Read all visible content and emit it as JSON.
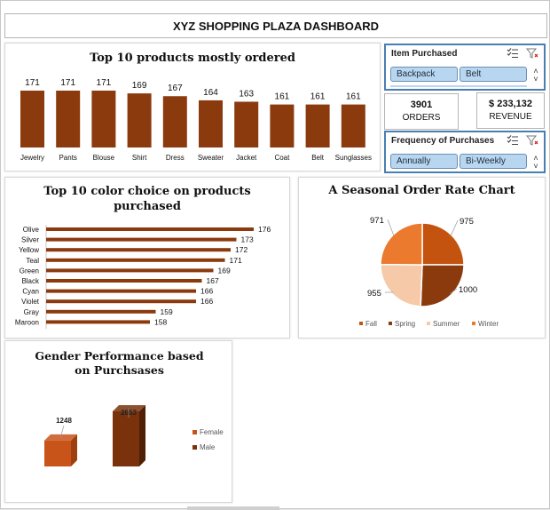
{
  "dashboard_title": "XYZ SHOPPING PLAZA DASHBOARD",
  "kpis": {
    "orders_value": "3901",
    "orders_label": "ORDERS",
    "revenue_value": "$ 233,132",
    "revenue_label": "REVENUE"
  },
  "slicers": {
    "item_purchased": {
      "title": "Item Purchased",
      "items": [
        "Backpack",
        "Belt"
      ]
    },
    "frequency": {
      "title": "Frequency of Purchases",
      "items": [
        "Annually",
        "Bi-Weekly"
      ]
    }
  },
  "colors": {
    "bar": "#8B3A0E",
    "male": "#7A320C",
    "female": "#C9541A",
    "fall": "#C4530F",
    "spring": "#8B3A0E",
    "summer": "#F6C9A8",
    "winter": "#EC7A2E",
    "slicer_button": "#B9D6F0",
    "slicer_border": "#4A7EB0"
  },
  "chart_data": [
    {
      "type": "bar",
      "title": "Top 10 products mostly ordered",
      "categories": [
        "Jewelry",
        "Pants",
        "Blouse",
        "Shirt",
        "Dress",
        "Sweater",
        "Jacket",
        "Coat",
        "Belt",
        "Sunglasses"
      ],
      "values": [
        171,
        171,
        171,
        169,
        167,
        164,
        163,
        161,
        161,
        161
      ]
    },
    {
      "type": "bar",
      "orientation": "horizontal",
      "title": "Top 10 color choice on products purchased",
      "categories": [
        "Olive",
        "Silver",
        "Yellow",
        "Teal",
        "Green",
        "Black",
        "Cyan",
        "Violet",
        "Gray",
        "Maroon"
      ],
      "values": [
        176,
        173,
        172,
        171,
        169,
        167,
        166,
        166,
        159,
        158
      ]
    },
    {
      "type": "pie",
      "title": "A Seasonal Order Rate Chart",
      "labels": [
        "Fall",
        "Spring",
        "Summer",
        "Winter"
      ],
      "values": [
        975,
        1000,
        955,
        971
      ],
      "legend": "bottom"
    },
    {
      "type": "bar",
      "title": "Gender Performance based on Purchsases",
      "categories": [
        "Female",
        "Male"
      ],
      "values": [
        1248,
        2653
      ],
      "legend": "right"
    }
  ]
}
